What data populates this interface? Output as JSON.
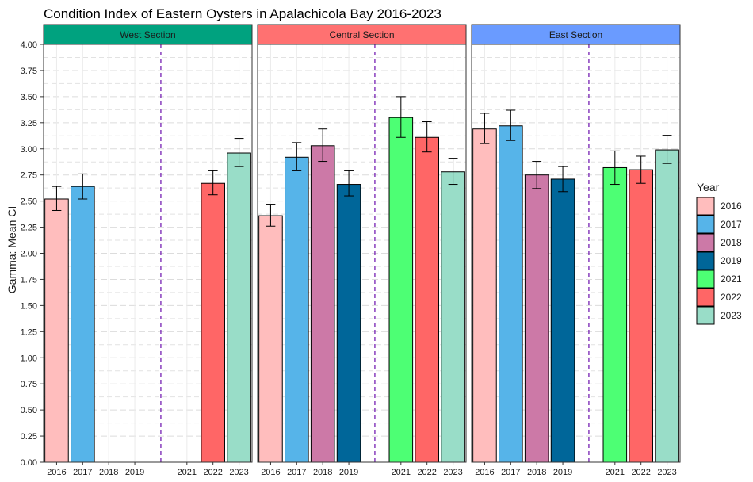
{
  "chart_data": {
    "type": "bar",
    "title": "Condition Index of Eastern Oysters in Apalachicola Bay 2016-2023",
    "ylabel": "Gamma: Mean CI",
    "xlabel": "",
    "ylim": [
      0,
      4.0
    ],
    "y_ticks": [
      "0.00",
      "0.25",
      "0.50",
      "0.75",
      "1.00",
      "1.25",
      "1.50",
      "1.75",
      "2.00",
      "2.25",
      "2.50",
      "2.75",
      "3.00",
      "3.25",
      "3.50",
      "3.75",
      "4.00"
    ],
    "grid": true,
    "categories": [
      "2016",
      "2017",
      "2018",
      "2019",
      "2021",
      "2022",
      "2023"
    ],
    "divider_between": [
      "2019",
      "2021"
    ],
    "legend": {
      "title": "Year",
      "position": "right",
      "entries": [
        {
          "label": "2016",
          "color": "#FFBDBD"
        },
        {
          "label": "2017",
          "color": "#56B4E9"
        },
        {
          "label": "2018",
          "color": "#CC79A7"
        },
        {
          "label": "2019",
          "color": "#006699"
        },
        {
          "label": "2021",
          "color": "#4DFF74"
        },
        {
          "label": "2022",
          "color": "#FF6666"
        },
        {
          "label": "2023",
          "color": "#99DDC8"
        }
      ]
    },
    "panels": [
      {
        "name": "West Section",
        "strip_color": "#00A27F",
        "bars": [
          {
            "year": "2016",
            "value": 2.52,
            "lower": 2.41,
            "upper": 2.64
          },
          {
            "year": "2017",
            "value": 2.64,
            "lower": 2.52,
            "upper": 2.76
          },
          {
            "year": "2022",
            "value": 2.67,
            "lower": 2.56,
            "upper": 2.79
          },
          {
            "year": "2023",
            "value": 2.96,
            "lower": 2.83,
            "upper": 3.1
          }
        ]
      },
      {
        "name": "Central Section",
        "strip_color": "#FF7171",
        "bars": [
          {
            "year": "2016",
            "value": 2.36,
            "lower": 2.26,
            "upper": 2.47
          },
          {
            "year": "2017",
            "value": 2.92,
            "lower": 2.79,
            "upper": 3.06
          },
          {
            "year": "2018",
            "value": 3.03,
            "lower": 2.88,
            "upper": 3.19
          },
          {
            "year": "2019",
            "value": 2.66,
            "lower": 2.55,
            "upper": 2.79
          },
          {
            "year": "2021",
            "value": 3.3,
            "lower": 3.11,
            "upper": 3.5
          },
          {
            "year": "2022",
            "value": 3.11,
            "lower": 2.97,
            "upper": 3.26
          },
          {
            "year": "2023",
            "value": 2.78,
            "lower": 2.66,
            "upper": 2.91
          }
        ]
      },
      {
        "name": "East Section",
        "strip_color": "#6A9BFF",
        "bars": [
          {
            "year": "2016",
            "value": 3.19,
            "lower": 3.05,
            "upper": 3.34
          },
          {
            "year": "2017",
            "value": 3.22,
            "lower": 3.08,
            "upper": 3.37
          },
          {
            "year": "2018",
            "value": 2.75,
            "lower": 2.62,
            "upper": 2.88
          },
          {
            "year": "2019",
            "value": 2.71,
            "lower": 2.59,
            "upper": 2.83
          },
          {
            "year": "2021",
            "value": 2.82,
            "lower": 2.66,
            "upper": 2.98
          },
          {
            "year": "2022",
            "value": 2.8,
            "lower": 2.67,
            "upper": 2.93
          },
          {
            "year": "2023",
            "value": 2.99,
            "lower": 2.86,
            "upper": 3.13
          }
        ]
      }
    ]
  }
}
